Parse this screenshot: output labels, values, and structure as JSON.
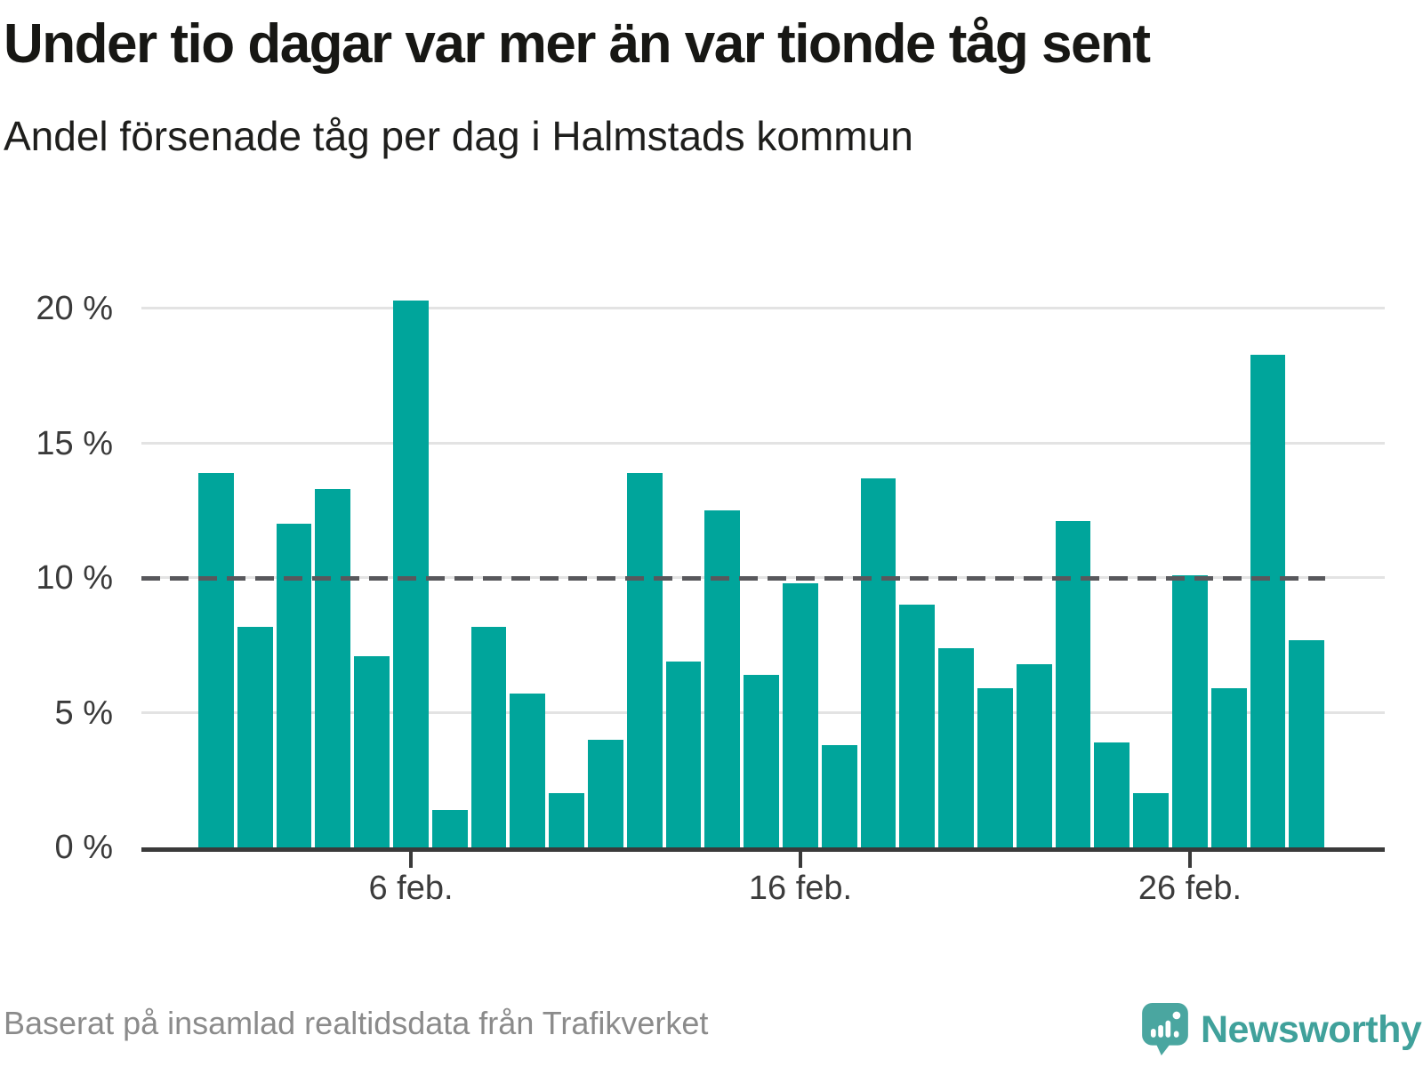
{
  "chart_data": {
    "type": "bar",
    "title": "Under tio dagar var mer än var tionde tåg sent",
    "subtitle": "Andel försenade tåg per dag i Halmstads kommun",
    "unit": "%",
    "values": [
      13.9,
      8.2,
      12.0,
      13.3,
      7.1,
      20.3,
      1.4,
      8.2,
      5.7,
      2.0,
      4.0,
      13.9,
      6.9,
      12.5,
      6.4,
      9.8,
      3.8,
      13.7,
      9.0,
      7.4,
      5.9,
      6.8,
      12.1,
      3.9,
      2.0,
      10.1,
      5.9,
      18.3,
      7.7
    ],
    "x_ticks": [
      {
        "bar_index": 6,
        "label": "6 feb."
      },
      {
        "bar_index": 16,
        "label": "16 feb."
      },
      {
        "bar_index": 26,
        "label": "26 feb."
      }
    ],
    "y_ticks": [
      {
        "value": 20,
        "label": "20 %"
      },
      {
        "value": 15,
        "label": "15 %"
      },
      {
        "value": 10,
        "label": "10 %"
      },
      {
        "value": 5,
        "label": "5 %"
      },
      {
        "value": 0,
        "label": "0 %"
      }
    ],
    "reference_line_value": 10,
    "ylim": [
      0,
      20.5
    ],
    "grid": true,
    "legend": "none",
    "bar_color": "#00a59b",
    "reference_line_color": "#58585c",
    "gridline_color": "#e3e3e3"
  },
  "footer": {
    "source": "Baserat på insamlad realtidsdata från Trafikverket",
    "logo_text": "Newsworthy"
  }
}
